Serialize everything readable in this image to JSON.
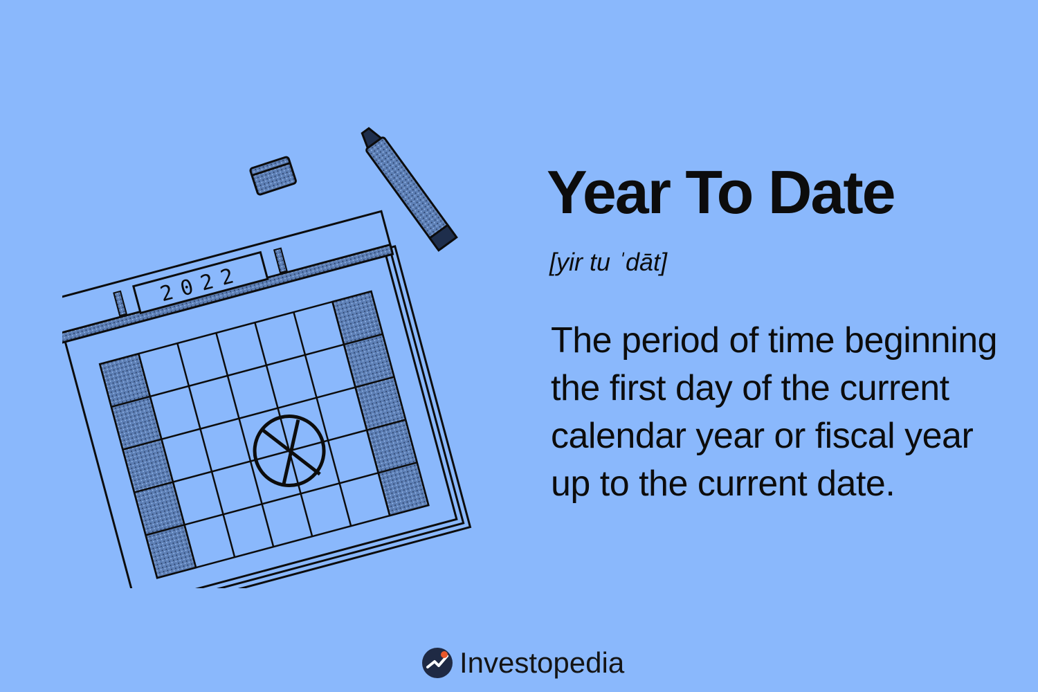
{
  "term": "Year To Date",
  "pronunciation": "[yir tu ˈdāt]",
  "definition": "The period of time beginning the first day of the current calendar year or fiscal year up to the current date.",
  "illustration": {
    "year_label": "2022",
    "icons": [
      "calendar-icon",
      "marker-icon",
      "marker-cap-icon",
      "crossed-circle-icon"
    ]
  },
  "brand": {
    "name": "Investopedia",
    "icon": "investopedia-logo-icon"
  },
  "colors": {
    "background": "#8ab8fc",
    "ink": "#0c0c0c",
    "logo_accent": "#e8582b"
  }
}
